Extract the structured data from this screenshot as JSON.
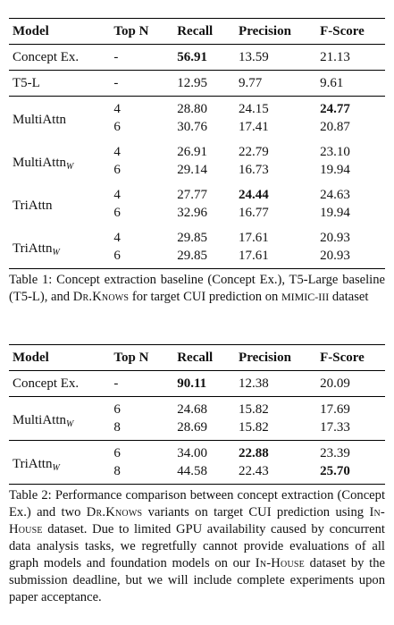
{
  "columns": [
    "Model",
    "Top N",
    "Recall",
    "Precision",
    "F-Score"
  ],
  "table1": {
    "rows": [
      {
        "model": "Concept Ex.",
        "sub": "",
        "entries": [
          {
            "topn": "-",
            "recall": "56.91",
            "precision": "13.59",
            "fscore": "21.13"
          }
        ]
      },
      {
        "model": "T5-L",
        "sub": "",
        "entries": [
          {
            "topn": "-",
            "recall": "12.95",
            "precision": "9.77",
            "fscore": "9.61"
          }
        ]
      },
      {
        "model": "MultiAttn",
        "sub": "",
        "entries": [
          {
            "topn": "4",
            "recall": "28.80",
            "precision": "24.15",
            "fscore": "24.77"
          },
          {
            "topn": "6",
            "recall": "30.76",
            "precision": "17.41",
            "fscore": "20.87"
          }
        ]
      },
      {
        "model": "MultiAttn",
        "sub": "W",
        "entries": [
          {
            "topn": "4",
            "recall": "26.91",
            "precision": "22.79",
            "fscore": "23.10"
          },
          {
            "topn": "6",
            "recall": "29.14",
            "precision": "16.73",
            "fscore": "19.94"
          }
        ]
      },
      {
        "model": "TriAttn",
        "sub": "",
        "entries": [
          {
            "topn": "4",
            "recall": "27.77",
            "precision": "24.44",
            "fscore": "24.63"
          },
          {
            "topn": "6",
            "recall": "32.96",
            "precision": "16.77",
            "fscore": "19.94"
          }
        ]
      },
      {
        "model": "TriAttn",
        "sub": "W",
        "entries": [
          {
            "topn": "4",
            "recall": "29.85",
            "precision": "17.61",
            "fscore": "20.93"
          },
          {
            "topn": "6",
            "recall": "29.85",
            "precision": "17.61",
            "fscore": "20.93"
          }
        ]
      }
    ],
    "caption": {
      "label": "Table 1:",
      "p1": "Concept extraction baseline (Concept Ex.), T5-Large baseline (T5-L), and ",
      "sc": "Dr.Knows",
      "p2": " for target CUI prediction on ",
      "mono": "MIMIC-III",
      "p3": " dataset"
    }
  },
  "table2": {
    "rows": [
      {
        "model": "Concept Ex.",
        "sub": "",
        "entries": [
          {
            "topn": "-",
            "recall": "90.11",
            "precision": "12.38",
            "fscore": "20.09"
          }
        ]
      },
      {
        "model": "MultiAttn",
        "sub": "W",
        "entries": [
          {
            "topn": "6",
            "recall": "24.68",
            "precision": "15.82",
            "fscore": "17.69"
          },
          {
            "topn": "8",
            "recall": "28.69",
            "precision": "15.82",
            "fscore": "17.33"
          }
        ]
      },
      {
        "model": "TriAttn",
        "sub": "W",
        "entries": [
          {
            "topn": "6",
            "recall": "34.00",
            "precision": "22.88",
            "fscore": "23.39"
          },
          {
            "topn": "8",
            "recall": "44.58",
            "precision": "22.43",
            "fscore": "25.70"
          }
        ]
      }
    ],
    "caption": {
      "label": "Table 2:",
      "p1": "Performance comparison between concept extraction (Concept Ex.) and two ",
      "sc": "Dr.Knows",
      "p2": " variants on target CUI prediction using ",
      "sc2": "In-House",
      "p3": " dataset. Due to limited GPU availability caused by concurrent data analysis tasks, we regretfully cannot provide evaluations of all graph models and foundation models on our ",
      "sc3": "In-House",
      "p4": " dataset by the submission deadline, but we will include complete experiments upon paper acceptance."
    }
  }
}
